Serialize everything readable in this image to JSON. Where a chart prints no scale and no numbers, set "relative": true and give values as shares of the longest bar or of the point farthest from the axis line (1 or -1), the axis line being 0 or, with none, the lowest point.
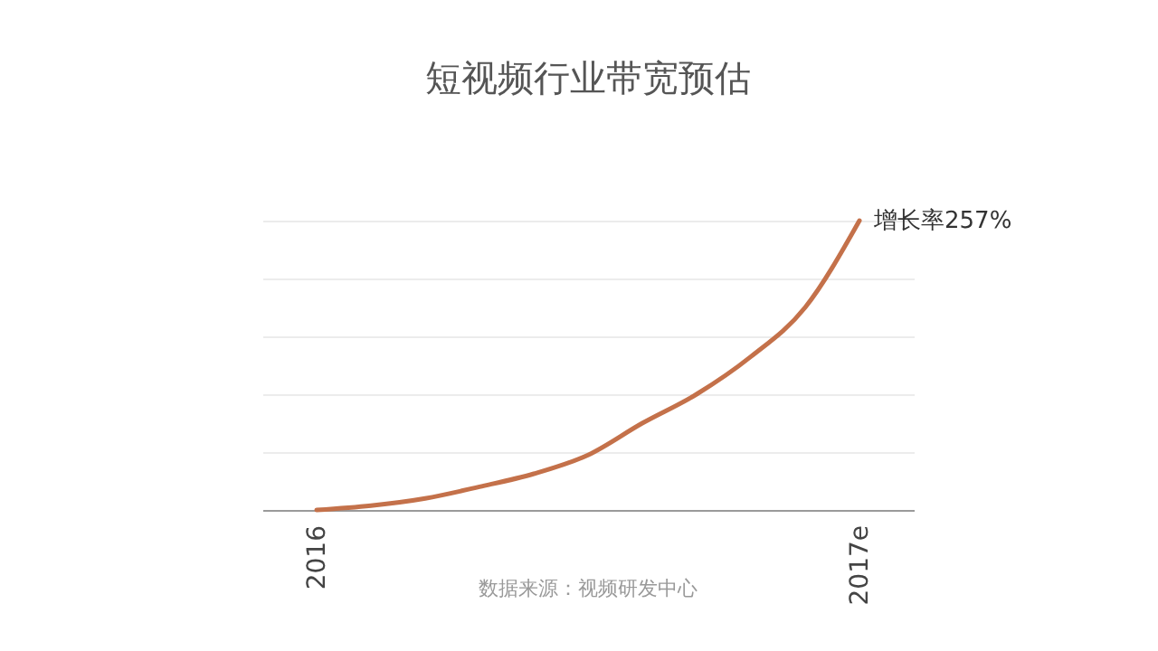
{
  "chart_data": {
    "type": "line",
    "title": "短视频行业带宽预估",
    "relative": true,
    "grid": "y",
    "categories": [
      "2016",
      null,
      null,
      null,
      null,
      null,
      null,
      null,
      null,
      null,
      "2017e"
    ],
    "series": [
      {
        "color": "#c4714a",
        "values": [
          0,
          0.015,
          0.04,
          0.08,
          0.125,
          0.19,
          0.3,
          0.4,
          0.53,
          0.7,
          1
        ]
      }
    ],
    "annotations": [
      {
        "text": "增长率257%",
        "x": "2017e",
        "y": 1
      },
      "数据来源：视频研发中心"
    ]
  }
}
